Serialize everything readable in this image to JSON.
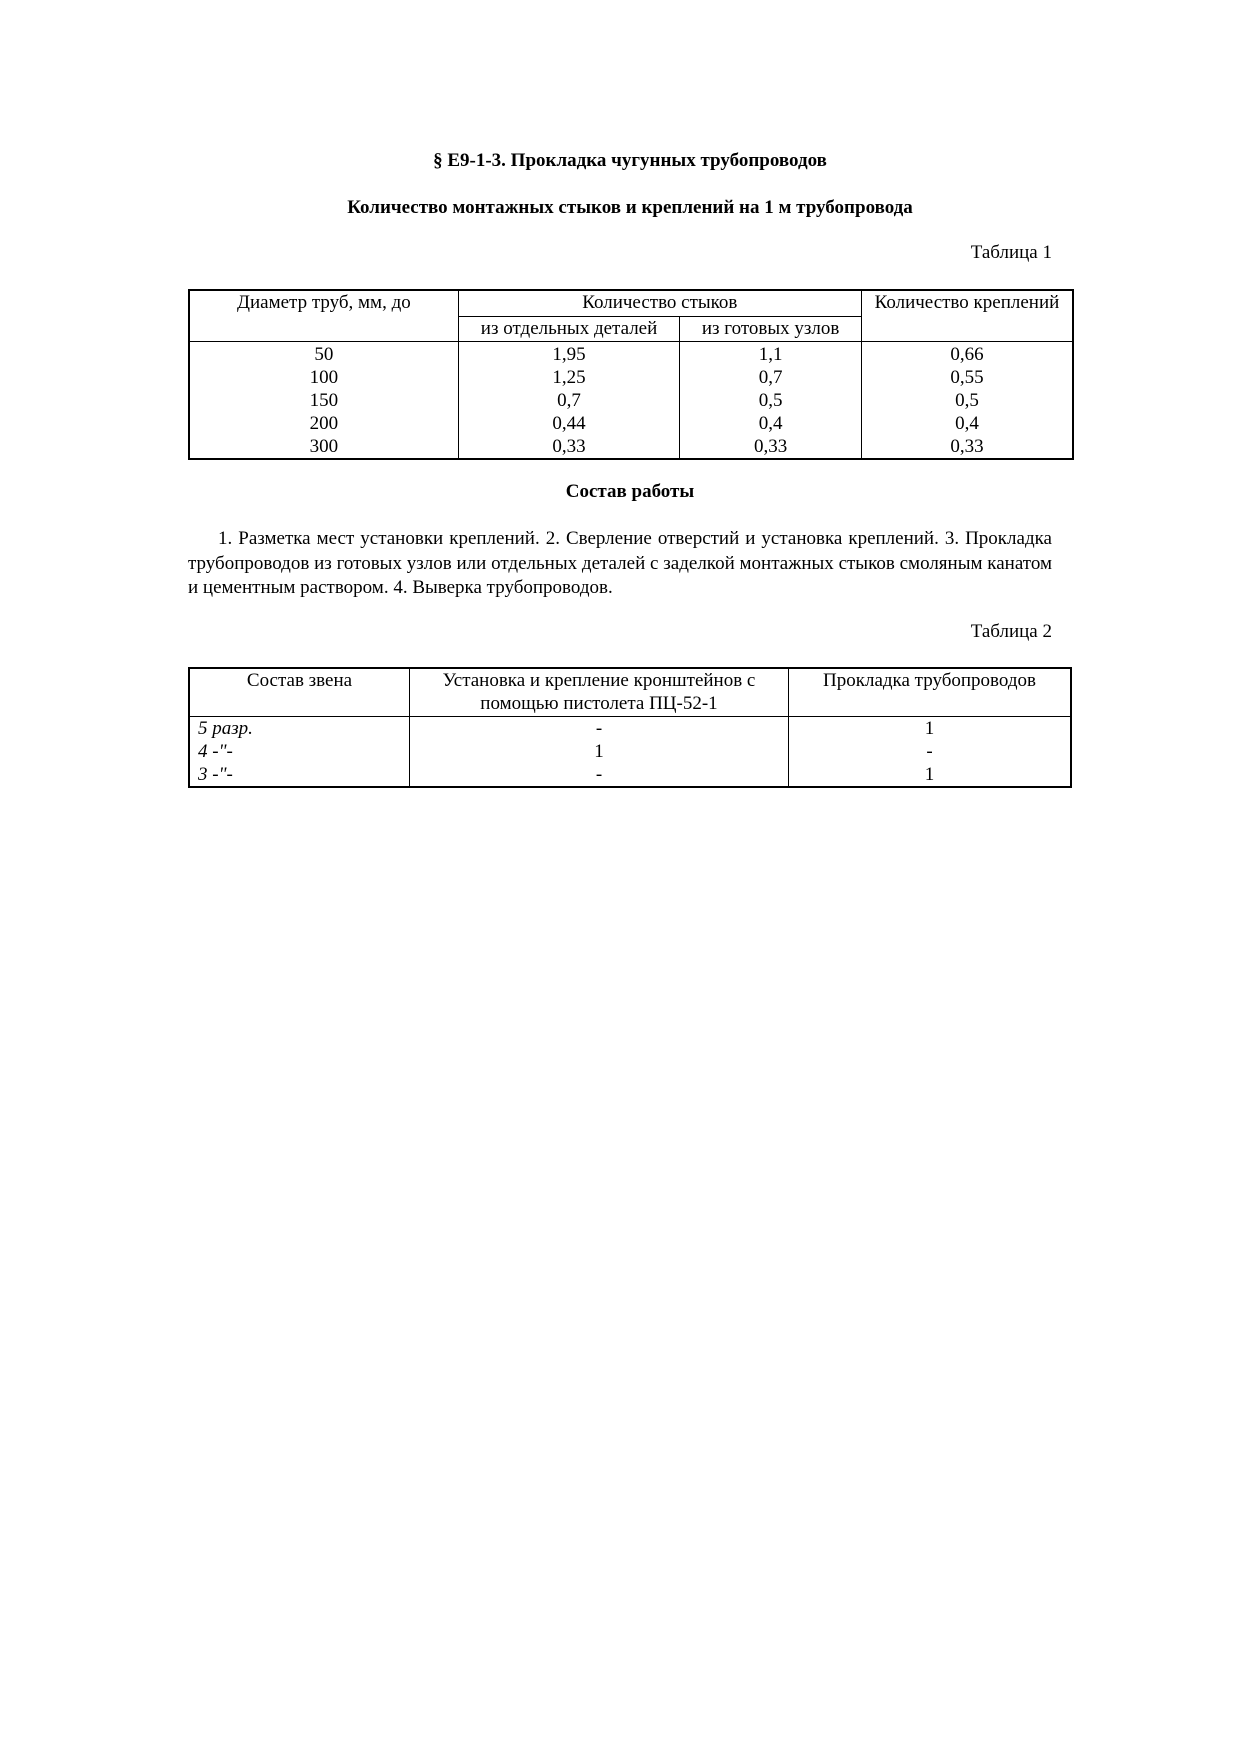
{
  "title": "§ Е9-1-3. Прокладка чугунных трубопроводов",
  "subtitle": "Количество  монтажных стыков и креплений на 1 м трубопровода",
  "table1": {
    "label": "Таблица 1",
    "headers": {
      "diameter": "Диаметр  труб, мм, до",
      "joints": "Количество стыков",
      "joints_parts": "из отдельных деталей",
      "joints_units": "из готовых узлов",
      "fasteners": "Количество креплений"
    },
    "rows": [
      [
        "50",
        "1,95",
        "1,1",
        "0,66"
      ],
      [
        "100",
        "1,25",
        "0,7",
        "0,55"
      ],
      [
        "150",
        "0,7",
        "0,5",
        "0,5"
      ],
      [
        "200",
        "0,44",
        "0,4",
        "0,4"
      ],
      [
        "300",
        "0,33",
        "0,33",
        "0,33"
      ]
    ]
  },
  "work": {
    "heading": "Состав работы",
    "text": "1. Разметка мест установки креплений. 2. Сверление отверстий и установка креплений. 3. Прокладка трубопроводов из готовых узлов или отдельных деталей с заделкой монтажных стыков смоляным канатом и цементным раствором. 4. Выверка трубопроводов."
  },
  "table2": {
    "label": "Таблица 2",
    "headers": [
      "Состав звена",
      "Установка и крепление кронштейнов с помощью пистолета ПЦ-52-1",
      "Прокладка трубопроводов"
    ],
    "rows": [
      [
        "5  разр.",
        "-",
        "1"
      ],
      [
        "4  -\"-",
        "1",
        "-"
      ],
      [
        "3  -\"-",
        "-",
        "1"
      ]
    ]
  }
}
